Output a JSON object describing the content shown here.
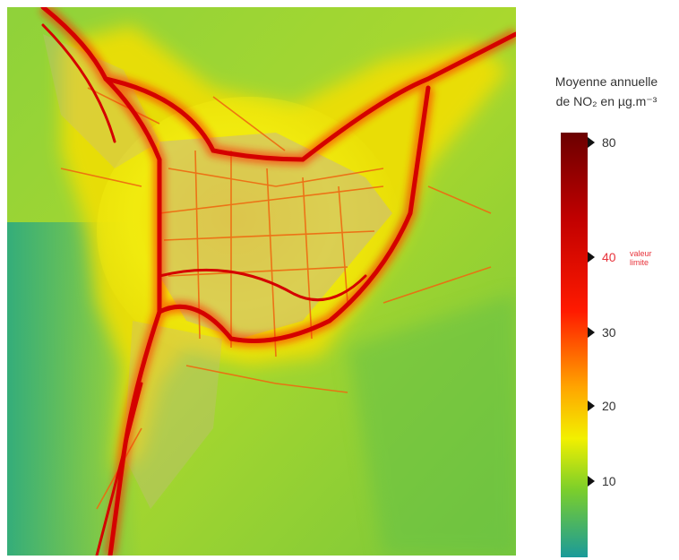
{
  "legend": {
    "title_line1": "Moyenne annuelle",
    "title_line2": "de NO₂ en µg.m⁻³",
    "limit_note_line1": "valeur",
    "limit_note_line2": "limite",
    "ticks": [
      {
        "value": 80,
        "label": "80"
      },
      {
        "value": 40,
        "label": "40"
      },
      {
        "value": 30,
        "label": "30"
      },
      {
        "value": 20,
        "label": "20"
      },
      {
        "value": 10,
        "label": "10"
      }
    ],
    "colors": {
      "high": "#6b0000",
      "limit": "#ff1a00",
      "mid": "#ffa500",
      "yellow": "#f2f000",
      "green": "#7ccf2a",
      "low": "#1a9a9a"
    }
  }
}
